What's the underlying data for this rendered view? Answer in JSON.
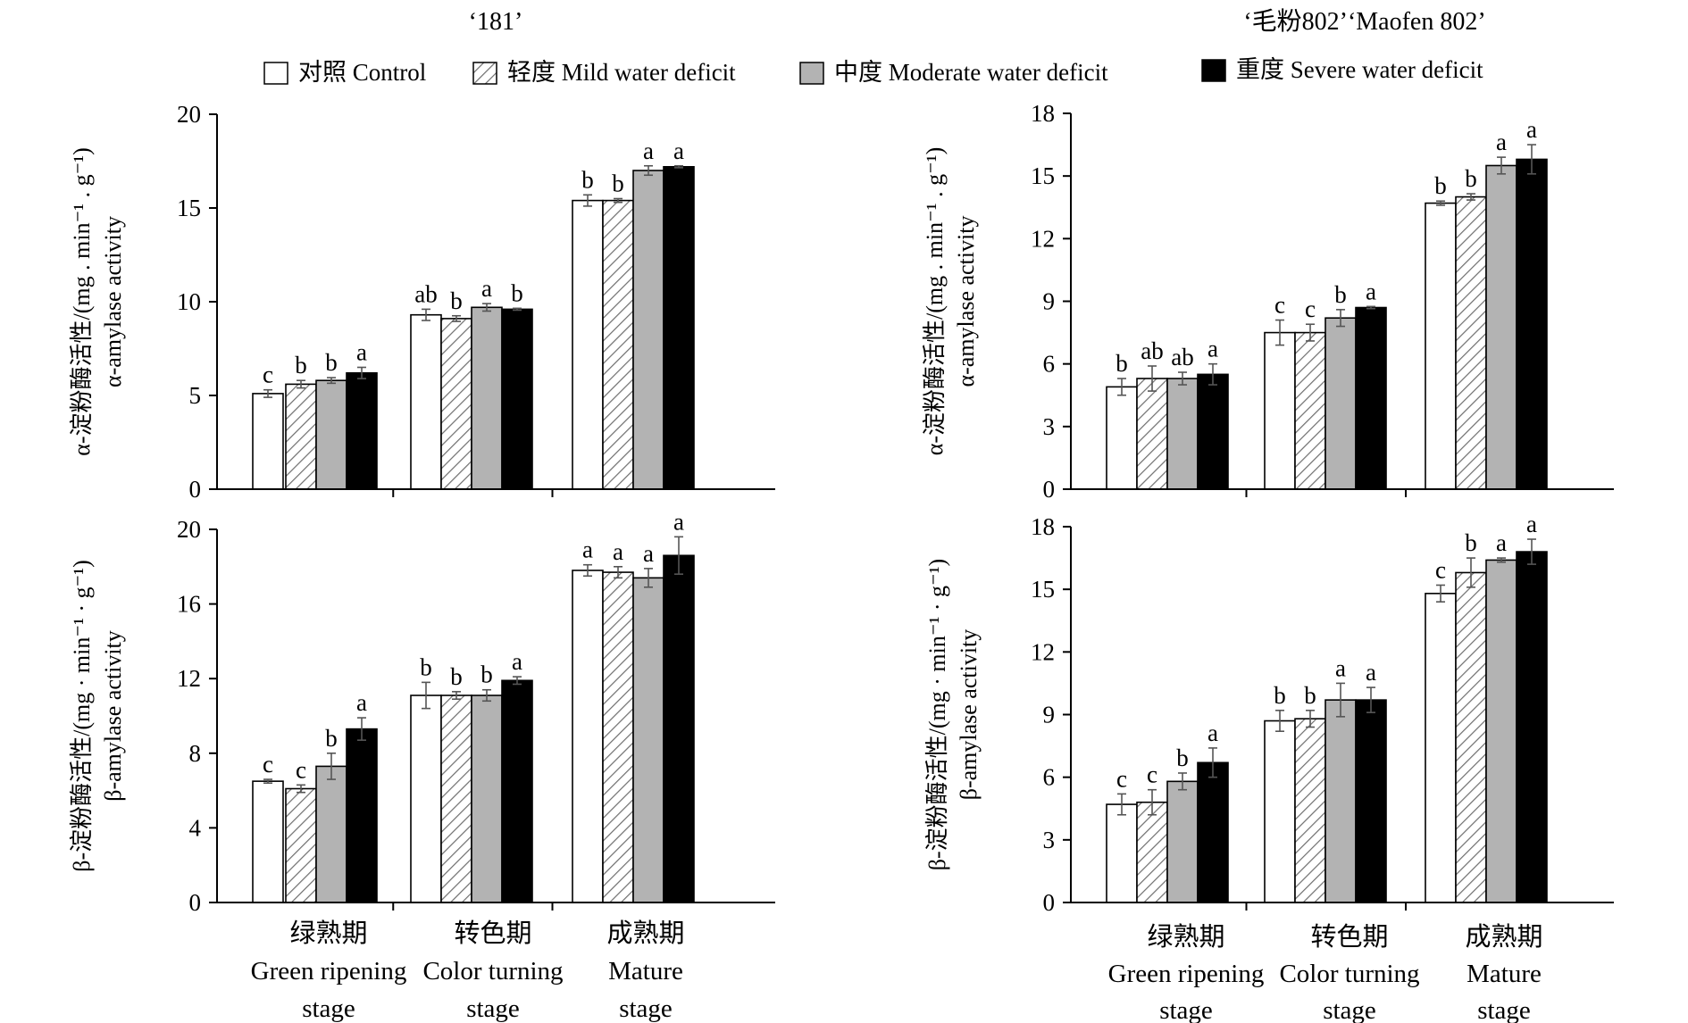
{
  "colors": {
    "control": "#ffffff",
    "mild_hatch": "#6e6e6e",
    "moderate": "#b3b3b3",
    "severe": "#000000",
    "axis": "#000000"
  },
  "legend": [
    {
      "label": "对照 Control",
      "pattern": "white"
    },
    {
      "label": "轻度 Mild water deficit",
      "pattern": "hatch"
    },
    {
      "label": "中度 Moderate water deficit",
      "pattern": "gray"
    },
    {
      "label": "重度 Severe water deficit",
      "pattern": "black"
    }
  ],
  "columns": [
    {
      "title": "‘181’"
    },
    {
      "title": "‘毛粉802’‘Maofen 802’"
    }
  ],
  "categories": [
    {
      "zh": "绿熟期",
      "en1": "Green ripening",
      "en2": "stage"
    },
    {
      "zh": "转色期",
      "en1": "Color turning",
      "en2": "stage"
    },
    {
      "zh": "成熟期",
      "en1": "Mature",
      "en2": "stage"
    }
  ],
  "chart_data": [
    {
      "type": "bar",
      "panel": "181 α-amylase",
      "ylabel": "α-淀粉酶活性/(mg . min⁻¹ . g⁻¹)",
      "ylabel2": "α-amylase activity",
      "ylim": [
        0,
        20
      ],
      "yticks": [
        0,
        5,
        10,
        15,
        20
      ],
      "series": [
        {
          "name": "对照 Control",
          "values": [
            5.1,
            9.3,
            15.4
          ],
          "err": [
            0.2,
            0.3,
            0.3
          ],
          "letters": [
            "c",
            "ab",
            "b"
          ]
        },
        {
          "name": "轻度 Mild water deficit",
          "values": [
            5.6,
            9.1,
            15.4
          ],
          "err": [
            0.2,
            0.15,
            0.1
          ],
          "letters": [
            "b",
            "b",
            "b"
          ]
        },
        {
          "name": "中度 Moderate water deficit",
          "values": [
            5.8,
            9.7,
            17.0
          ],
          "err": [
            0.15,
            0.2,
            0.25
          ],
          "letters": [
            "b",
            "a",
            "a"
          ]
        },
        {
          "name": "重度 Severe water deficit",
          "values": [
            6.2,
            9.6,
            17.2
          ],
          "err": [
            0.3,
            0.05,
            0.05
          ],
          "letters": [
            "a",
            "b",
            "a"
          ]
        }
      ]
    },
    {
      "type": "bar",
      "panel": "Maofen 802 α-amylase",
      "ylabel": "α-淀粉酶活性/(mg . min⁻¹ . g⁻¹)",
      "ylabel2": "α-amylase activity",
      "ylim": [
        0,
        18
      ],
      "yticks": [
        0,
        3,
        6,
        9,
        12,
        15,
        18
      ],
      "series": [
        {
          "name": "对照 Control",
          "values": [
            4.9,
            7.5,
            13.7
          ],
          "err": [
            0.4,
            0.6,
            0.1
          ],
          "letters": [
            "b",
            "c",
            "b"
          ]
        },
        {
          "name": "轻度 Mild water deficit",
          "values": [
            5.3,
            7.5,
            14.0
          ],
          "err": [
            0.6,
            0.4,
            0.15
          ],
          "letters": [
            "ab",
            "c",
            "b"
          ]
        },
        {
          "name": "中度 Moderate water deficit",
          "values": [
            5.3,
            8.2,
            15.5
          ],
          "err": [
            0.3,
            0.4,
            0.4
          ],
          "letters": [
            "ab",
            "b",
            "a"
          ]
        },
        {
          "name": "重度 Severe water deficit",
          "values": [
            5.5,
            8.7,
            15.8
          ],
          "err": [
            0.5,
            0.05,
            0.7
          ],
          "letters": [
            "a",
            "a",
            "a"
          ]
        }
      ]
    },
    {
      "type": "bar",
      "panel": "181 β-amylase",
      "ylabel": "β-淀粉酶活性/(mg · min⁻¹ · g⁻¹)",
      "ylabel2": "β-amylase activity",
      "ylim": [
        0,
        20
      ],
      "yticks": [
        0,
        4,
        8,
        12,
        16,
        20
      ],
      "series": [
        {
          "name": "对照 Control",
          "values": [
            6.5,
            11.1,
            17.8
          ],
          "err": [
            0.1,
            0.7,
            0.3
          ],
          "letters": [
            "c",
            "b",
            "a"
          ]
        },
        {
          "name": "轻度 Mild water deficit",
          "values": [
            6.1,
            11.1,
            17.7
          ],
          "err": [
            0.2,
            0.2,
            0.3
          ],
          "letters": [
            "c",
            "b",
            "a"
          ]
        },
        {
          "name": "中度 Moderate water deficit",
          "values": [
            7.3,
            11.1,
            17.4
          ],
          "err": [
            0.7,
            0.3,
            0.5
          ],
          "letters": [
            "b",
            "b",
            "a"
          ]
        },
        {
          "name": "重度 Severe water deficit",
          "values": [
            9.3,
            11.9,
            18.6
          ],
          "err": [
            0.6,
            0.2,
            1.0
          ],
          "letters": [
            "a",
            "a",
            "a"
          ]
        }
      ]
    },
    {
      "type": "bar",
      "panel": "Maofen 802 β-amylase",
      "ylabel": "β-淀粉酶活性/(mg · min⁻¹ · g⁻¹)",
      "ylabel2": "β-amylase activity",
      "ylim": [
        0,
        18
      ],
      "yticks": [
        0,
        3,
        6,
        9,
        12,
        15,
        18
      ],
      "series": [
        {
          "name": "对照 Control",
          "values": [
            4.7,
            8.7,
            14.8
          ],
          "err": [
            0.5,
            0.5,
            0.4
          ],
          "letters": [
            "c",
            "b",
            "c"
          ]
        },
        {
          "name": "轻度 Mild water deficit",
          "values": [
            4.8,
            8.8,
            15.8
          ],
          "err": [
            0.6,
            0.4,
            0.7
          ],
          "letters": [
            "c",
            "b",
            "b"
          ]
        },
        {
          "name": "中度 Moderate water deficit",
          "values": [
            5.8,
            9.7,
            16.4
          ],
          "err": [
            0.4,
            0.8,
            0.1
          ],
          "letters": [
            "b",
            "a",
            "a"
          ]
        },
        {
          "name": "重度 Severe water deficit",
          "values": [
            6.7,
            9.7,
            16.8
          ],
          "err": [
            0.7,
            0.6,
            0.6
          ],
          "letters": [
            "a",
            "a",
            "a"
          ]
        }
      ]
    }
  ]
}
